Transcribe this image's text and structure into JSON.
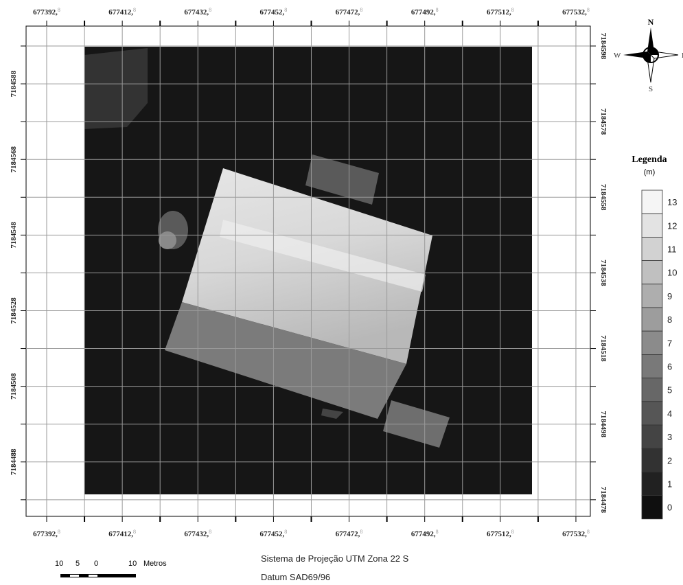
{
  "x_labels": [
    "677392,",
    "677412,",
    "677432,",
    "677452,",
    "677472,",
    "677492,",
    "677512,",
    "677532,"
  ],
  "coord_suffix": "8",
  "y_labels_left": [
    "7184588",
    "7184568",
    "7184548",
    "7184528",
    "7184508",
    "7184488"
  ],
  "y_labels_right": [
    "7184598",
    "7184578",
    "7184558",
    "7184538",
    "7184518",
    "7184498",
    "7184478"
  ],
  "compass": {
    "n": "N",
    "s": "S",
    "e": "E",
    "w": "W"
  },
  "legend": {
    "title": "Legenda",
    "unit": "(m)",
    "classes": [
      "13",
      "12",
      "11",
      "10",
      "9",
      "8",
      "7",
      "6",
      "5",
      "4",
      "3",
      "2",
      "1",
      "0"
    ]
  },
  "scale_bar": {
    "labels": [
      "10",
      "5",
      "0",
      "10",
      "Metros"
    ]
  },
  "projection": [
    "Sistema de Projeção UTM Zona 22 S",
    "Datum SAD69/96"
  ]
}
